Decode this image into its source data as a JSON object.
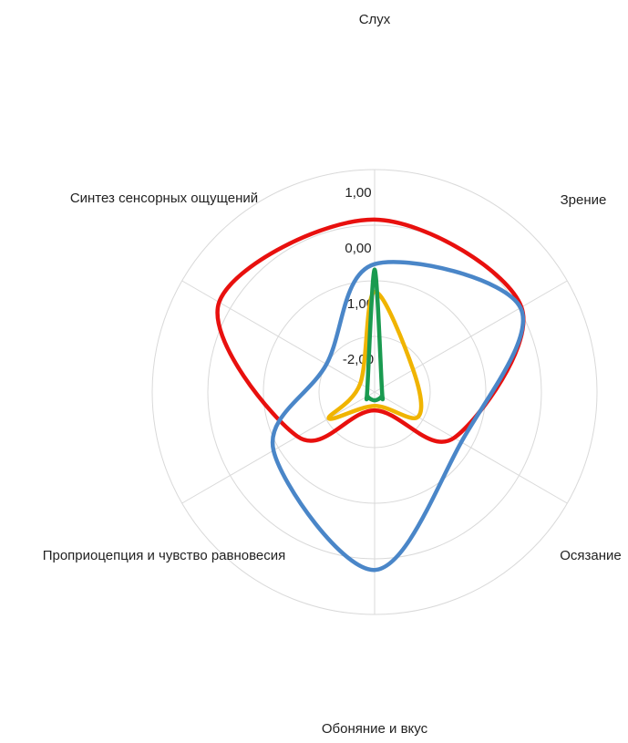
{
  "chart_data": {
    "type": "radar",
    "categories": [
      "Слух",
      "Зрение",
      "Осязание",
      "Обоняние и вкус",
      "Проприоцепция и чувство равновесия",
      "Синтез сенсорных ощущений"
    ],
    "ylim": [
      -3,
      1
    ],
    "yticks": [
      {
        "value": 1,
        "label": "1,00"
      },
      {
        "value": 0,
        "label": "0,00"
      },
      {
        "value": -1,
        "label": "-1,00"
      },
      {
        "value": -2,
        "label": "-2,00"
      }
    ],
    "grid": true,
    "series": [
      {
        "color": "#e8100e",
        "values": [
          0.1,
          0.05,
          -1.35,
          -2.67,
          -1.4,
          0.23
        ]
      },
      {
        "color": "#4a86c8",
        "values": [
          -0.7,
          0.03,
          -1.2,
          0.2,
          -0.9,
          -2.0
        ]
      },
      {
        "color": "#f0b400",
        "values": [
          -1.2,
          -2.2,
          -2.1,
          -2.75,
          -2.05,
          -2.7
        ]
      },
      {
        "color": "#1a9a50",
        "values": [
          -0.8,
          -2.85,
          -2.85,
          -2.85,
          -2.85,
          -2.85
        ]
      }
    ]
  }
}
